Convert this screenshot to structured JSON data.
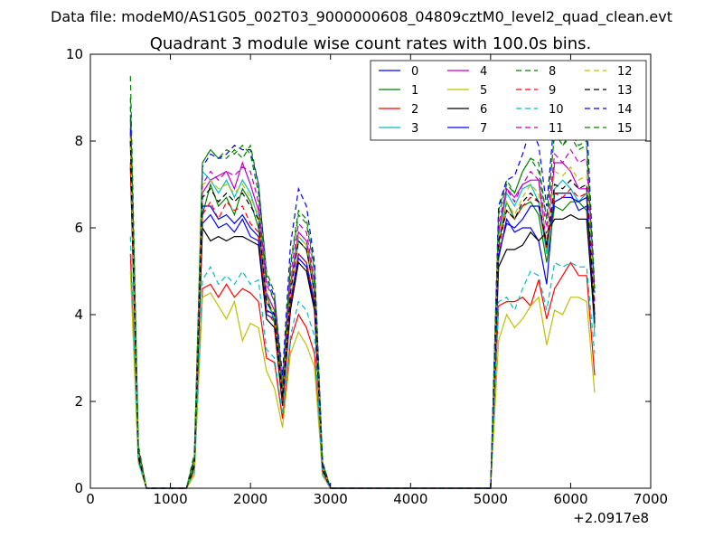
{
  "suptitle": "Data file: modeM0/AS1G05_002T03_9000000608_04809cztM0_level2_quad_clean.evt",
  "chart_data": {
    "type": "line",
    "title": "Quadrant 3 module wise count rates with 100.0s bins.",
    "xlabel": "",
    "ylabel": "",
    "x_offset_label": "+2.0917e8",
    "xlim": [
      0,
      7000
    ],
    "ylim": [
      0,
      10
    ],
    "x_ticks": [
      0,
      1000,
      2000,
      3000,
      4000,
      5000,
      6000,
      7000
    ],
    "y_ticks": [
      0,
      2,
      4,
      6,
      8,
      10
    ],
    "grid": false,
    "legend_position": "top-right",
    "x": [
      500,
      600,
      700,
      800,
      900,
      1000,
      1100,
      1200,
      1300,
      1400,
      1500,
      1600,
      1700,
      1800,
      1900,
      2000,
      2100,
      2200,
      2300,
      2400,
      2500,
      2600,
      2700,
      2800,
      2900,
      3000,
      3100,
      3200,
      3300,
      3400,
      3500,
      3600,
      3700,
      3800,
      3900,
      4000,
      4100,
      4200,
      4300,
      4400,
      4500,
      4600,
      4700,
      4800,
      4900,
      5000,
      5100,
      5200,
      5300,
      5400,
      5500,
      5600,
      5700,
      5800,
      5900,
      6000,
      6100,
      6200,
      6300
    ],
    "series": [
      {
        "name": "0",
        "color": "#0000ff",
        "dash": false,
        "values": [
          8.2,
          0.8,
          0,
          0,
          0,
          0,
          0,
          0,
          0.6,
          6.1,
          6.3,
          6.0,
          6.1,
          5.9,
          6.2,
          5.8,
          5.7,
          4.0,
          3.9,
          2.0,
          4.2,
          5.3,
          5.1,
          4.2,
          0.5,
          0,
          0,
          0,
          0,
          0,
          0,
          0,
          0,
          0,
          0,
          0,
          0,
          0,
          0,
          0,
          0,
          0,
          0,
          0,
          0,
          0,
          5.3,
          6.2,
          5.9,
          6.0,
          6.0,
          5.7,
          4.7,
          6.8,
          6.8,
          6.8,
          6.4,
          6.5,
          3.9
        ]
      },
      {
        "name": "1",
        "color": "#008000",
        "dash": false,
        "values": [
          8.5,
          0.9,
          0,
          0,
          0,
          0,
          0,
          0,
          0.7,
          6.3,
          7.0,
          6.5,
          6.7,
          6.3,
          6.9,
          6.6,
          6.0,
          4.5,
          3.8,
          2.2,
          4.6,
          5.7,
          5.5,
          4.5,
          0.5,
          0,
          0,
          0,
          0,
          0,
          0,
          0,
          0,
          0,
          0,
          0,
          0,
          0,
          0,
          0,
          0,
          0,
          0,
          0,
          0,
          0,
          5.6,
          6.6,
          6.2,
          6.5,
          6.6,
          6.3,
          5.2,
          6.5,
          6.4,
          6.6,
          6.6,
          6.4,
          3.7
        ]
      },
      {
        "name": "2",
        "color": "#ff0000",
        "dash": false,
        "values": [
          5.4,
          0.6,
          0,
          0,
          0,
          0,
          0,
          0,
          0.4,
          4.6,
          4.7,
          4.4,
          4.7,
          4.4,
          4.6,
          4.5,
          4.3,
          3.0,
          2.9,
          1.6,
          3.4,
          4.0,
          3.7,
          3.1,
          0.3,
          0,
          0,
          0,
          0,
          0,
          0,
          0,
          0,
          0,
          0,
          0,
          0,
          0,
          0,
          0,
          0,
          0,
          0,
          0,
          0,
          0,
          4.2,
          4.3,
          4.3,
          4.4,
          4.2,
          4.8,
          3.9,
          4.6,
          4.9,
          5.2,
          4.9,
          4.9,
          2.6
        ]
      },
      {
        "name": "3",
        "color": "#00bfbf",
        "dash": false,
        "values": [
          7.9,
          0.8,
          0,
          0,
          0,
          0,
          0,
          0,
          0.6,
          7.3,
          7.1,
          6.8,
          7.1,
          6.7,
          7.1,
          6.8,
          6.2,
          4.3,
          3.9,
          2.1,
          4.6,
          5.8,
          5.6,
          4.6,
          0.5,
          0,
          0,
          0,
          0,
          0,
          0,
          0,
          0,
          0,
          0,
          0,
          0,
          0,
          0,
          0,
          0,
          0,
          0,
          0,
          0,
          0,
          5.8,
          6.8,
          6.5,
          6.9,
          7.0,
          6.6,
          5.4,
          6.9,
          7.1,
          6.9,
          6.6,
          6.8,
          3.5
        ]
      },
      {
        "name": "4",
        "color": "#bf00bf",
        "dash": false,
        "values": [
          8.0,
          0.9,
          0,
          0,
          0,
          0,
          0,
          0,
          0.6,
          6.8,
          7.1,
          7.2,
          7.3,
          6.9,
          7.5,
          7.0,
          6.4,
          4.5,
          4.1,
          2.2,
          4.7,
          5.9,
          5.7,
          4.7,
          0.5,
          0,
          0,
          0,
          0,
          0,
          0,
          0,
          0,
          0,
          0,
          0,
          0,
          0,
          0,
          0,
          0,
          0,
          0,
          0,
          0,
          0,
          5.9,
          6.9,
          6.7,
          7.0,
          7.1,
          7.1,
          5.6,
          7.5,
          7.5,
          7.3,
          6.9,
          6.9,
          3.8
        ]
      },
      {
        "name": "5",
        "color": "#bfbf00",
        "dash": false,
        "values": [
          5.0,
          0.6,
          0,
          0,
          0,
          0,
          0,
          0,
          0.3,
          4.4,
          4.5,
          4.2,
          3.9,
          4.3,
          3.4,
          3.8,
          3.7,
          2.7,
          2.3,
          1.4,
          3.1,
          3.6,
          3.3,
          2.8,
          0.3,
          0,
          0,
          0,
          0,
          0,
          0,
          0,
          0,
          0,
          0,
          0,
          0,
          0,
          0,
          0,
          0,
          0,
          0,
          0,
          0,
          0,
          3.4,
          4.0,
          3.7,
          3.9,
          4.2,
          4.4,
          3.3,
          4.1,
          4.0,
          4.4,
          4.4,
          4.3,
          2.2
        ]
      },
      {
        "name": "6",
        "color": "#000000",
        "dash": false,
        "values": [
          7.4,
          0.7,
          0,
          0,
          0,
          0,
          0,
          0,
          0.5,
          6.0,
          5.7,
          5.8,
          5.7,
          5.8,
          5.8,
          5.7,
          5.6,
          3.9,
          3.7,
          1.9,
          4.1,
          5.2,
          5.0,
          4.1,
          0.4,
          0,
          0,
          0,
          0,
          0,
          0,
          0,
          0,
          0,
          0,
          0,
          0,
          0,
          0,
          0,
          0,
          0,
          0,
          0,
          0,
          0,
          5.1,
          5.5,
          5.5,
          5.6,
          5.9,
          5.7,
          5.9,
          6.2,
          6.2,
          6.3,
          6.2,
          6.2,
          3.8
        ]
      },
      {
        "name": "7",
        "color": "#0000ff",
        "dash": false,
        "values": [
          8.3,
          0.8,
          0,
          0,
          0,
          0,
          0,
          0,
          0.6,
          6.5,
          6.5,
          6.2,
          6.3,
          6.1,
          6.3,
          6.0,
          5.8,
          4.1,
          4.0,
          2.0,
          4.3,
          5.4,
          5.2,
          4.3,
          0.5,
          0,
          0,
          0,
          0,
          0,
          0,
          0,
          0,
          0,
          0,
          0,
          0,
          0,
          0,
          0,
          0,
          0,
          0,
          0,
          0,
          0,
          5.4,
          6.1,
          6.0,
          6.2,
          6.5,
          6.5,
          5.6,
          6.6,
          6.7,
          6.7,
          6.6,
          6.7,
          4.0
        ]
      },
      {
        "name": "8",
        "color": "#008000",
        "dash": true,
        "values": [
          9.5,
          1.0,
          0,
          0,
          0,
          0,
          0,
          0,
          0.8,
          7.5,
          7.8,
          7.6,
          7.6,
          7.8,
          7.6,
          7.9,
          7.0,
          5.0,
          4.5,
          2.4,
          5.2,
          6.4,
          6.2,
          5.1,
          0.6,
          0,
          0,
          0,
          0,
          0,
          0,
          0,
          0,
          0,
          0,
          0,
          0,
          0,
          0,
          0,
          0,
          0,
          0,
          0,
          0,
          0,
          6.4,
          7.1,
          6.8,
          7.3,
          7.6,
          7.3,
          6.2,
          8.2,
          7.9,
          8.1,
          7.8,
          7.9,
          4.5
        ]
      },
      {
        "name": "9",
        "color": "#ff0000",
        "dash": true,
        "values": [
          7.5,
          0.8,
          0,
          0,
          0,
          0,
          0,
          0,
          0.6,
          6.3,
          6.6,
          6.2,
          6.6,
          6.4,
          6.5,
          6.1,
          5.9,
          4.1,
          3.8,
          2.0,
          4.3,
          5.4,
          5.2,
          4.3,
          0.4,
          0,
          0,
          0,
          0,
          0,
          0,
          0,
          0,
          0,
          0,
          0,
          0,
          0,
          0,
          0,
          0,
          0,
          0,
          0,
          0,
          0,
          5.5,
          6.4,
          6.2,
          6.5,
          6.7,
          6.6,
          5.5,
          6.8,
          6.7,
          6.9,
          6.7,
          6.8,
          4.0
        ]
      },
      {
        "name": "10",
        "color": "#00bfbf",
        "dash": true,
        "values": [
          5.8,
          0.6,
          0,
          0,
          0,
          0,
          0,
          0,
          0.4,
          4.8,
          5.1,
          4.7,
          4.9,
          4.7,
          5.0,
          4.7,
          4.8,
          3.2,
          3.0,
          1.7,
          3.5,
          4.3,
          4.1,
          3.5,
          0.3,
          0,
          0,
          0,
          0,
          0,
          0,
          0,
          0,
          0,
          0,
          0,
          0,
          0,
          0,
          0,
          0,
          0,
          0,
          0,
          0,
          0,
          4.3,
          4.4,
          4.1,
          4.6,
          5.0,
          4.9,
          4.1,
          5.2,
          5.1,
          5.2,
          5.1,
          5.1,
          3.1
        ]
      },
      {
        "name": "11",
        "color": "#bf00bf",
        "dash": true,
        "values": [
          8.6,
          0.9,
          0,
          0,
          0,
          0,
          0,
          0,
          0.7,
          7.0,
          7.3,
          7.1,
          7.3,
          7.2,
          7.4,
          7.3,
          6.6,
          4.7,
          4.3,
          2.3,
          4.9,
          6.1,
          5.9,
          4.8,
          0.5,
          0,
          0,
          0,
          0,
          0,
          0,
          0,
          0,
          0,
          0,
          0,
          0,
          0,
          0,
          0,
          0,
          0,
          0,
          0,
          0,
          0,
          6.1,
          6.9,
          6.6,
          7.0,
          7.3,
          7.1,
          6.0,
          7.7,
          7.5,
          7.8,
          7.5,
          7.6,
          4.3
        ]
      },
      {
        "name": "12",
        "color": "#bfbf00",
        "dash": true,
        "values": [
          8.1,
          0.8,
          0,
          0,
          0,
          0,
          0,
          0,
          0.6,
          7.0,
          7.1,
          6.9,
          7.0,
          6.8,
          7.0,
          6.7,
          6.3,
          4.4,
          4.0,
          2.1,
          4.6,
          5.8,
          5.6,
          4.6,
          0.5,
          0,
          0,
          0,
          0,
          0,
          0,
          0,
          0,
          0,
          0,
          0,
          0,
          0,
          0,
          0,
          0,
          0,
          0,
          0,
          0,
          0,
          5.8,
          6.6,
          6.3,
          6.7,
          7.0,
          6.8,
          5.7,
          7.3,
          7.2,
          7.4,
          7.1,
          7.2,
          4.1
        ]
      },
      {
        "name": "13",
        "color": "#000000",
        "dash": true,
        "values": [
          8.0,
          0.8,
          0,
          0,
          0,
          0,
          0,
          0,
          0.6,
          6.7,
          6.9,
          6.6,
          6.8,
          6.6,
          6.8,
          6.5,
          6.2,
          4.3,
          4.0,
          2.1,
          4.5,
          5.7,
          5.5,
          4.5,
          0.5,
          0,
          0,
          0,
          0,
          0,
          0,
          0,
          0,
          0,
          0,
          0,
          0,
          0,
          0,
          0,
          0,
          0,
          0,
          0,
          0,
          0,
          5.7,
          6.4,
          6.2,
          6.6,
          6.8,
          6.6,
          5.6,
          7.0,
          6.9,
          7.1,
          6.9,
          7.0,
          4.0
        ]
      },
      {
        "name": "14",
        "color": "#0000ff",
        "dash": true,
        "values": [
          8.8,
          0.9,
          0,
          0,
          0,
          0,
          0,
          0,
          0.7,
          7.4,
          7.7,
          7.6,
          7.7,
          7.9,
          7.8,
          7.8,
          7.0,
          4.9,
          4.4,
          2.6,
          5.6,
          6.9,
          6.5,
          5.2,
          0.6,
          0,
          0,
          0,
          0,
          0,
          0,
          0,
          0,
          0,
          0,
          0,
          0,
          0,
          0,
          0,
          0,
          0,
          0,
          0,
          0,
          0,
          6.5,
          7.1,
          7.2,
          7.7,
          8.3,
          7.9,
          6.5,
          8.6,
          8.2,
          8.5,
          8.2,
          8.5,
          4.6
        ]
      },
      {
        "name": "15",
        "color": "#008000",
        "dash": true,
        "values": [
          9.0,
          0.9,
          0,
          0,
          0,
          0,
          0,
          0,
          0.7,
          7.5,
          7.8,
          7.6,
          7.8,
          7.7,
          7.9,
          7.7,
          6.8,
          4.8,
          4.3,
          2.3,
          5.1,
          6.3,
          6.1,
          5.0,
          0.6,
          0,
          0,
          0,
          0,
          0,
          0,
          0,
          0,
          0,
          0,
          0,
          0,
          0,
          0,
          0,
          0,
          0,
          0,
          0,
          0,
          0,
          6.3,
          7.0,
          6.8,
          7.3,
          7.6,
          7.5,
          6.2,
          8.2,
          7.9,
          8.2,
          7.9,
          8.0,
          4.6
        ]
      }
    ]
  }
}
